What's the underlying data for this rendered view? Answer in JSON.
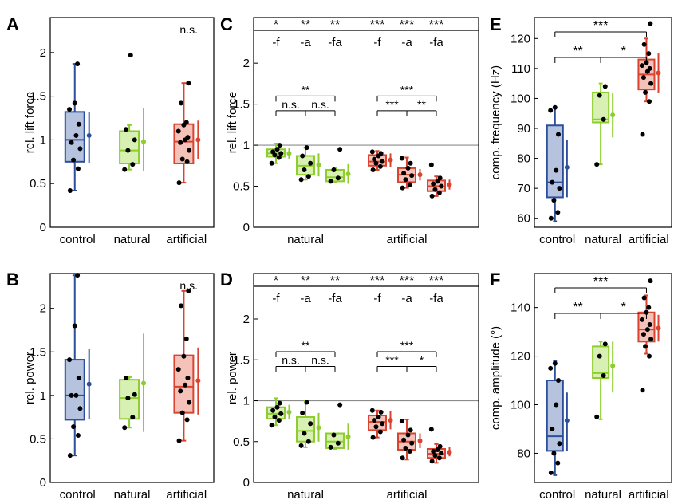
{
  "colors": {
    "control": "#2d4e9a",
    "control_fill": "#b6c3df",
    "natural": "#8dcd2e",
    "natural_fill": "#d8f0b4",
    "artificial": "#d9432f",
    "artificial_fill": "#f4c2b8",
    "reference_line": "#8c8c8c",
    "point": "#000000"
  },
  "chart_data": [
    {
      "panel": "A",
      "type": "box",
      "ylabel": "rel. lift force",
      "ylim": [
        0,
        2.4
      ],
      "yticks": [
        "0",
        "0.5",
        "1",
        "1.5",
        "2"
      ],
      "yticks_values": [
        0,
        0.5,
        1,
        1.5,
        2
      ],
      "categories": [
        "control",
        "natural",
        "artificial"
      ],
      "annotation": "n.s.",
      "series": [
        {
          "group": "control",
          "whisker_low": 0.42,
          "q1": 0.75,
          "median": 1.0,
          "q3": 1.32,
          "whisker_high": 1.87,
          "mean": 1.05,
          "sd_low": 0.74,
          "sd_high": 1.32,
          "points": [
            0.42,
            0.67,
            0.77,
            0.9,
            0.97,
            1.05,
            1.18,
            1.35,
            1.42,
            1.87
          ]
        },
        {
          "group": "natural",
          "whisker_low": 0.66,
          "q1": 0.73,
          "median": 0.88,
          "q3": 1.1,
          "whisker_high": 1.17,
          "mean": 0.98,
          "sd_low": 0.64,
          "sd_high": 1.36,
          "points": [
            0.66,
            0.72,
            0.88,
            1.0,
            1.12,
            1.97
          ]
        },
        {
          "group": "artificial",
          "whisker_low": 0.51,
          "q1": 0.73,
          "median": 0.98,
          "q3": 1.18,
          "whisker_high": 1.65,
          "mean": 1.0,
          "sd_low": 0.78,
          "sd_high": 1.22,
          "points": [
            0.51,
            0.75,
            0.78,
            0.88,
            0.97,
            1.0,
            1.03,
            1.1,
            1.17,
            1.2,
            1.42,
            1.65
          ]
        }
      ]
    },
    {
      "panel": "B",
      "type": "box",
      "ylabel": "rel. power",
      "ylim": [
        0,
        2.4
      ],
      "yticks": [
        "0",
        "0.5",
        "1",
        "1.5",
        "2"
      ],
      "yticks_values": [
        0,
        0.5,
        1,
        1.5,
        2
      ],
      "categories": [
        "control",
        "natural",
        "artificial"
      ],
      "annotation": "n.s.",
      "series": [
        {
          "group": "control",
          "whisker_low": 0.31,
          "q1": 0.72,
          "median": 1.0,
          "q3": 1.41,
          "whisker_high": 2.38,
          "mean": 1.13,
          "sd_low": 0.73,
          "sd_high": 1.53,
          "points": [
            0.31,
            0.54,
            0.64,
            0.85,
            1.0,
            1.0,
            1.2,
            1.41,
            1.8,
            2.38
          ]
        },
        {
          "group": "natural",
          "whisker_low": 0.63,
          "q1": 0.73,
          "median": 0.97,
          "q3": 1.18,
          "whisker_high": 1.21,
          "mean": 1.14,
          "sd_low": 0.58,
          "sd_high": 1.71,
          "points": [
            0.63,
            0.75,
            0.97,
            1.01,
            1.2
          ]
        },
        {
          "group": "artificial",
          "whisker_low": 0.48,
          "q1": 0.8,
          "median": 1.1,
          "q3": 1.46,
          "whisker_high": 2.2,
          "mean": 1.17,
          "sd_low": 0.78,
          "sd_high": 1.55,
          "points": [
            0.48,
            0.72,
            0.8,
            0.92,
            1.05,
            1.12,
            1.2,
            1.3,
            1.45,
            1.65,
            2.03,
            2.2
          ]
        }
      ]
    },
    {
      "panel": "C",
      "type": "box",
      "ylabel": "rel. lift force",
      "ylim": [
        0,
        2.4
      ],
      "yticks": [
        "0",
        "0.5",
        "1",
        "1.5",
        "2"
      ],
      "yticks_values": [
        0,
        0.5,
        1,
        1.5,
        2
      ],
      "reference_y": 1,
      "group_labels": [
        "natural",
        "artificial"
      ],
      "conditions": [
        "-f",
        "-a",
        "-fa",
        "-f",
        "-a",
        "-fa"
      ],
      "top_stars": [
        "*",
        "**",
        "**",
        "***",
        "***",
        "***"
      ],
      "brackets": [
        {
          "from": 1,
          "to": 3,
          "label": "**",
          "level": "upper"
        },
        {
          "from": 1,
          "to": 2,
          "label": "n.s.",
          "level": "lower"
        },
        {
          "from": 2,
          "to": 3,
          "label": "n.s.",
          "level": "lower"
        },
        {
          "from": 4,
          "to": 6,
          "label": "***",
          "level": "upper"
        },
        {
          "from": 4,
          "to": 5,
          "label": "***",
          "level": "lower"
        },
        {
          "from": 5,
          "to": 6,
          "label": "**",
          "level": "lower"
        }
      ],
      "series": [
        {
          "group": "natural",
          "condition": "-f",
          "whisker_low": 0.78,
          "q1": 0.86,
          "median": 0.9,
          "q3": 0.95,
          "whisker_high": 1.02,
          "mean": 0.9,
          "sd_low": 0.83,
          "sd_high": 0.97,
          "points": [
            0.78,
            0.85,
            0.88,
            0.9,
            0.92,
            0.95,
            1.0
          ]
        },
        {
          "group": "natural",
          "condition": "-a",
          "whisker_low": 0.58,
          "q1": 0.64,
          "median": 0.75,
          "q3": 0.87,
          "whisker_high": 0.97,
          "mean": 0.76,
          "sd_low": 0.62,
          "sd_high": 0.9,
          "points": [
            0.58,
            0.62,
            0.7,
            0.78,
            0.87,
            0.97
          ]
        },
        {
          "group": "natural",
          "condition": "-fa",
          "whisker_low": 0.55,
          "q1": 0.56,
          "median": 0.61,
          "q3": 0.7,
          "whisker_high": 0.72,
          "mean": 0.65,
          "sd_low": 0.53,
          "sd_high": 0.77,
          "points": [
            0.56,
            0.6,
            0.7,
            0.95
          ]
        },
        {
          "group": "artificial",
          "condition": "-f",
          "whisker_low": 0.7,
          "q1": 0.75,
          "median": 0.8,
          "q3": 0.88,
          "whisker_high": 0.93,
          "mean": 0.82,
          "sd_low": 0.73,
          "sd_high": 0.9,
          "points": [
            0.7,
            0.74,
            0.78,
            0.8,
            0.83,
            0.87,
            0.9,
            0.92
          ]
        },
        {
          "group": "artificial",
          "condition": "-a",
          "whisker_low": 0.48,
          "q1": 0.55,
          "median": 0.64,
          "q3": 0.72,
          "whisker_high": 0.85,
          "mean": 0.64,
          "sd_low": 0.57,
          "sd_high": 0.71,
          "points": [
            0.48,
            0.52,
            0.58,
            0.63,
            0.66,
            0.72,
            0.78,
            0.84
          ]
        },
        {
          "group": "artificial",
          "condition": "-fa",
          "whisker_low": 0.38,
          "q1": 0.44,
          "median": 0.5,
          "q3": 0.57,
          "whisker_high": 0.62,
          "mean": 0.52,
          "sd_low": 0.46,
          "sd_high": 0.58,
          "points": [
            0.38,
            0.42,
            0.46,
            0.5,
            0.53,
            0.56,
            0.6,
            0.76
          ]
        }
      ]
    },
    {
      "panel": "D",
      "type": "box",
      "ylabel": "rel. power",
      "ylim": [
        0,
        2.4
      ],
      "yticks": [
        "0",
        "0.5",
        "1",
        "1.5",
        "2"
      ],
      "yticks_values": [
        0,
        0.5,
        1,
        1.5,
        2
      ],
      "reference_y": 1,
      "group_labels": [
        "natural",
        "artificial"
      ],
      "conditions": [
        "-f",
        "-a",
        "-fa",
        "-f",
        "-a",
        "-fa"
      ],
      "top_stars": [
        "*",
        "**",
        "**",
        "***",
        "***",
        "***"
      ],
      "brackets": [
        {
          "from": 1,
          "to": 3,
          "label": "**",
          "level": "upper"
        },
        {
          "from": 1,
          "to": 2,
          "label": "n.s.",
          "level": "lower"
        },
        {
          "from": 2,
          "to": 3,
          "label": "n.s.",
          "level": "lower"
        },
        {
          "from": 4,
          "to": 6,
          "label": "***",
          "level": "upper"
        },
        {
          "from": 4,
          "to": 5,
          "label": "***",
          "level": "lower"
        },
        {
          "from": 5,
          "to": 6,
          "label": "*",
          "level": "lower"
        }
      ],
      "series": [
        {
          "group": "natural",
          "condition": "-f",
          "whisker_low": 0.7,
          "q1": 0.78,
          "median": 0.84,
          "q3": 0.92,
          "whisker_high": 1.03,
          "mean": 0.86,
          "sd_low": 0.77,
          "sd_high": 0.95,
          "points": [
            0.7,
            0.76,
            0.8,
            0.84,
            0.88,
            0.92,
            0.97
          ]
        },
        {
          "group": "natural",
          "condition": "-a",
          "whisker_low": 0.43,
          "q1": 0.5,
          "median": 0.63,
          "q3": 0.8,
          "whisker_high": 1.0,
          "mean": 0.67,
          "sd_low": 0.5,
          "sd_high": 0.85,
          "points": [
            0.45,
            0.5,
            0.6,
            0.72,
            0.85,
            0.98
          ]
        },
        {
          "group": "natural",
          "condition": "-fa",
          "whisker_low": 0.41,
          "q1": 0.42,
          "median": 0.5,
          "q3": 0.6,
          "whisker_high": 0.6,
          "mean": 0.56,
          "sd_low": 0.4,
          "sd_high": 0.72,
          "points": [
            0.43,
            0.48,
            0.58,
            0.95
          ]
        },
        {
          "group": "artificial",
          "condition": "-f",
          "whisker_low": 0.55,
          "q1": 0.64,
          "median": 0.74,
          "q3": 0.82,
          "whisker_high": 0.88,
          "mean": 0.76,
          "sd_low": 0.65,
          "sd_high": 0.87,
          "points": [
            0.55,
            0.62,
            0.68,
            0.72,
            0.76,
            0.8,
            0.86,
            0.88
          ]
        },
        {
          "group": "artificial",
          "condition": "-a",
          "whisker_low": 0.28,
          "q1": 0.4,
          "median": 0.5,
          "q3": 0.6,
          "whisker_high": 0.77,
          "mean": 0.51,
          "sd_low": 0.42,
          "sd_high": 0.6,
          "points": [
            0.3,
            0.38,
            0.42,
            0.48,
            0.52,
            0.58,
            0.64,
            0.75
          ]
        },
        {
          "group": "artificial",
          "condition": "-fa",
          "whisker_low": 0.24,
          "q1": 0.3,
          "median": 0.35,
          "q3": 0.41,
          "whisker_high": 0.47,
          "mean": 0.37,
          "sd_low": 0.32,
          "sd_high": 0.43,
          "points": [
            0.26,
            0.3,
            0.33,
            0.36,
            0.38,
            0.4,
            0.44,
            0.65
          ]
        }
      ]
    },
    {
      "panel": "E",
      "type": "box",
      "ylabel": "comp. frequency (Hz)",
      "ylim": [
        57,
        127
      ],
      "yticks": [
        "60",
        "70",
        "80",
        "90",
        "100",
        "110",
        "120"
      ],
      "yticks_values": [
        60,
        70,
        80,
        90,
        100,
        110,
        120
      ],
      "categories": [
        "control",
        "natural",
        "artificial"
      ],
      "brackets": [
        {
          "from": 1,
          "to": 3,
          "label": "***",
          "level": "upper"
        },
        {
          "from": 1,
          "to": 2,
          "label": "**",
          "level": "lower"
        },
        {
          "from": 2,
          "to": 3,
          "label": "*",
          "level": "lower"
        }
      ],
      "series": [
        {
          "group": "control",
          "whisker_low": 59,
          "q1": 67,
          "median": 72,
          "q3": 91,
          "whisker_high": 97,
          "mean": 77,
          "sd_low": 67,
          "sd_high": 86,
          "points": [
            60,
            62,
            66,
            70,
            72,
            76,
            88,
            96,
            97
          ]
        },
        {
          "group": "natural",
          "whisker_low": 78,
          "q1": 92,
          "median": 93,
          "q3": 102,
          "whisker_high": 105,
          "mean": 94.5,
          "sd_low": 87,
          "sd_high": 102,
          "points": [
            78,
            93,
            101,
            104
          ]
        },
        {
          "group": "artificial",
          "whisker_low": 99,
          "q1": 103,
          "median": 108,
          "q3": 113,
          "whisker_high": 120,
          "mean": 108.5,
          "sd_low": 102,
          "sd_high": 115,
          "points": [
            88,
            99,
            102,
            105,
            107,
            109,
            110,
            111,
            112,
            115,
            118,
            125
          ]
        }
      ]
    },
    {
      "panel": "F",
      "type": "box",
      "ylabel": "comp. amplitude (°)",
      "ylim": [
        68,
        154
      ],
      "yticks": [
        "80",
        "100",
        "120",
        "140"
      ],
      "yticks_values": [
        80,
        100,
        120,
        140
      ],
      "categories": [
        "control",
        "natural",
        "artificial"
      ],
      "brackets": [
        {
          "from": 1,
          "to": 3,
          "label": "***",
          "level": "upper"
        },
        {
          "from": 1,
          "to": 2,
          "label": "**",
          "level": "lower"
        },
        {
          "from": 2,
          "to": 3,
          "label": "*",
          "level": "lower"
        }
      ],
      "series": [
        {
          "group": "control",
          "whisker_low": 71,
          "q1": 81,
          "median": 87,
          "q3": 110,
          "whisker_high": 118,
          "mean": 93.5,
          "sd_low": 81,
          "sd_high": 105,
          "points": [
            72,
            76,
            80,
            84,
            90,
            100,
            110,
            115,
            117
          ]
        },
        {
          "group": "natural",
          "whisker_low": 94,
          "q1": 111,
          "median": 113,
          "q3": 124,
          "whisker_high": 126,
          "mean": 116,
          "sd_low": 105,
          "sd_high": 126,
          "points": [
            95,
            112,
            120,
            125
          ]
        },
        {
          "group": "artificial",
          "whisker_low": 121,
          "q1": 126,
          "median": 131,
          "q3": 138,
          "whisker_high": 145,
          "mean": 131.5,
          "sd_low": 126,
          "sd_high": 137,
          "points": [
            106,
            120,
            124,
            127,
            129,
            131,
            133,
            135,
            138,
            140,
            144,
            151
          ]
        }
      ]
    }
  ]
}
